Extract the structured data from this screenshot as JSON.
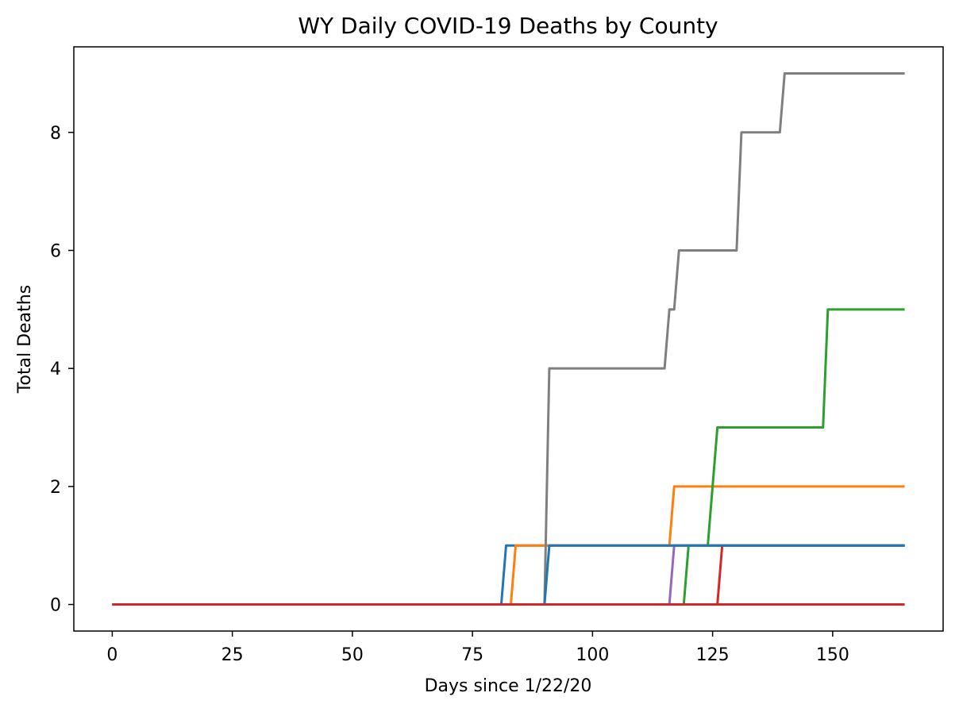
{
  "chart_data": {
    "type": "line",
    "title": "WY Daily COVID-19 Deaths by County",
    "xlabel": "Days since 1/22/20",
    "ylabel": "Total Deaths",
    "xlim": [
      -8,
      173
    ],
    "ylim": [
      -0.45,
      9.45
    ],
    "xticks": [
      0,
      25,
      50,
      75,
      100,
      125,
      150
    ],
    "yticks": [
      0,
      2,
      4,
      6,
      8
    ],
    "grid": false,
    "legend": "none",
    "series": [
      {
        "color": "#1f77b4",
        "points": [
          [
            0,
            0
          ],
          [
            81,
            0
          ],
          [
            82,
            1
          ],
          [
            165,
            1
          ]
        ]
      },
      {
        "color": "#ff7f0e",
        "points": [
          [
            0,
            0
          ],
          [
            83,
            0
          ],
          [
            84,
            1
          ],
          [
            116,
            1
          ],
          [
            117,
            2
          ],
          [
            165,
            2
          ]
        ]
      },
      {
        "color": "#2ca02c",
        "points": [
          [
            0,
            0
          ],
          [
            119,
            0
          ],
          [
            120,
            1
          ],
          [
            124,
            1
          ],
          [
            126,
            3
          ],
          [
            148,
            3
          ],
          [
            149,
            5
          ],
          [
            165,
            5
          ]
        ]
      },
      {
        "color": "#d62728",
        "points": [
          [
            0,
            0
          ],
          [
            126,
            0
          ],
          [
            127,
            1
          ],
          [
            165,
            1
          ]
        ]
      },
      {
        "color": "#9467bd",
        "points": [
          [
            0,
            0
          ],
          [
            116,
            0
          ],
          [
            117,
            1
          ],
          [
            165,
            1
          ]
        ]
      },
      {
        "color": "#7f7f7f",
        "points": [
          [
            0,
            0
          ],
          [
            90,
            0
          ],
          [
            91,
            4
          ],
          [
            115,
            4
          ],
          [
            116,
            5
          ],
          [
            117,
            5
          ],
          [
            118,
            6
          ],
          [
            130,
            6
          ],
          [
            131,
            8
          ],
          [
            139,
            8
          ],
          [
            140,
            9
          ],
          [
            165,
            9
          ]
        ]
      },
      {
        "color": "#1f77b4",
        "points": [
          [
            0,
            0
          ],
          [
            90,
            0
          ],
          [
            91,
            1
          ],
          [
            165,
            1
          ]
        ]
      },
      {
        "color": "#d62728",
        "points": [
          [
            0,
            0
          ],
          [
            165,
            0
          ]
        ]
      }
    ]
  }
}
